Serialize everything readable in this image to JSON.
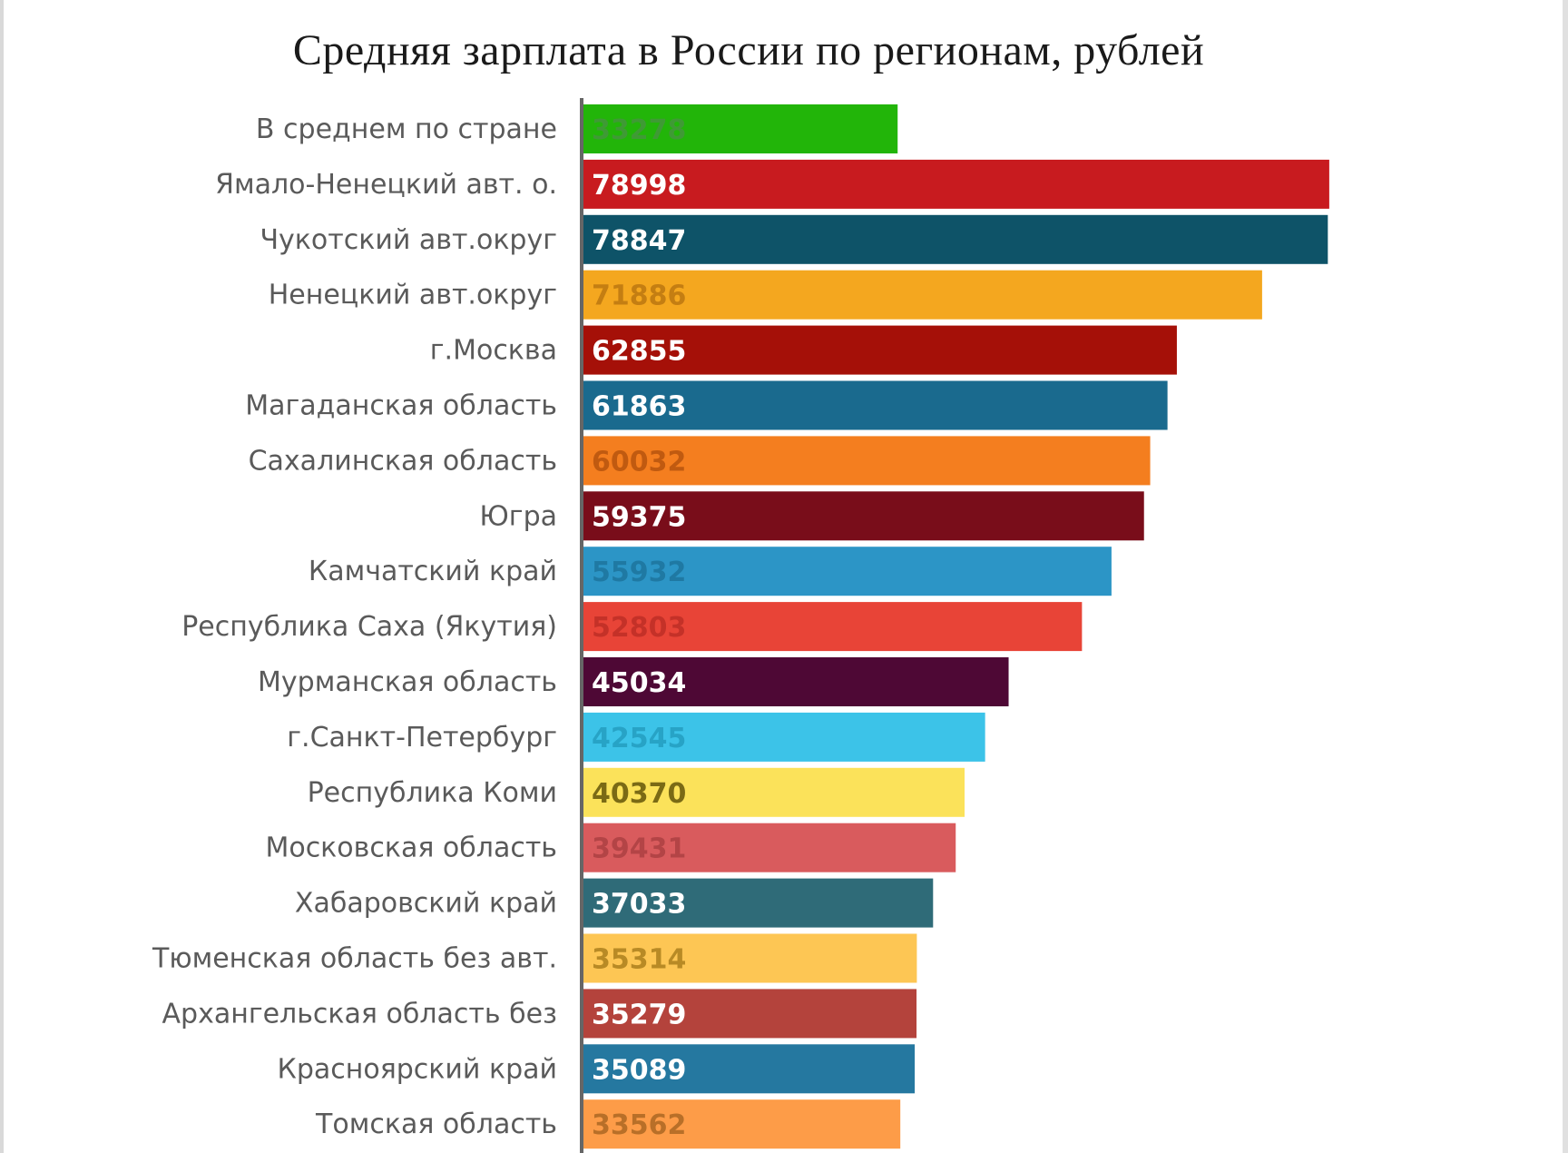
{
  "chart_data": {
    "type": "bar",
    "orientation": "horizontal",
    "title": "Средняя зарплата в России по регионам, рублей",
    "xlabel": "",
    "ylabel": "",
    "xlim": [
      0,
      80000
    ],
    "grid": false,
    "categories": [
      "В среднем по стране",
      "Ямало-Ненецкий авт. о.",
      "Чукотский авт.округ",
      "Ненецкий авт.округ",
      "г.Москва",
      "Магаданская область",
      "Сахалинская область",
      "Югра",
      "Камчатский край",
      "Республика Саха (Якутия)",
      "Мурманская область",
      "г.Санкт-Петербург",
      "Республика Коми",
      "Московская область",
      "Хабаровский край",
      "Тюменская область без авт.",
      "Архангельская область без",
      "Красноярский край",
      "Томская область"
    ],
    "values": [
      33278,
      78998,
      78847,
      71886,
      62855,
      61863,
      60032,
      59375,
      55932,
      52803,
      45034,
      42545,
      40370,
      39431,
      37033,
      35314,
      35279,
      35089,
      33562
    ],
    "value_labels": [
      "33278",
      "78998",
      "78847",
      "71886",
      "62855",
      "61863",
      "60032",
      "59375",
      "55932",
      "52803",
      "45034",
      "42545",
      "40370",
      "39431",
      "37033",
      "35314",
      "35279",
      "35089",
      "33562"
    ],
    "bar_colors": [
      "#22b509",
      "#c81b1f",
      "#0e5368",
      "#f4a71f",
      "#a51008",
      "#1a6a8e",
      "#f47e1f",
      "#790d1a",
      "#2c95c6",
      "#e84437",
      "#4e0835",
      "#3cc3e8",
      "#fbe25a",
      "#d95b5d",
      "#2f6b78",
      "#fdc654",
      "#b4433c",
      "#2578a0",
      "#fd9c48"
    ],
    "value_label_colors": [
      "#3f9a35",
      "#ffffff",
      "#ffffff",
      "#c47e12",
      "#ffffff",
      "#ffffff",
      "#c05a10",
      "#ffffff",
      "#1f79a3",
      "#c43128",
      "#ffffff",
      "#27a3c6",
      "#7a6a15",
      "#b34446",
      "#ffffff",
      "#b88a25",
      "#ffffff",
      "#ffffff",
      "#b86f28"
    ]
  }
}
